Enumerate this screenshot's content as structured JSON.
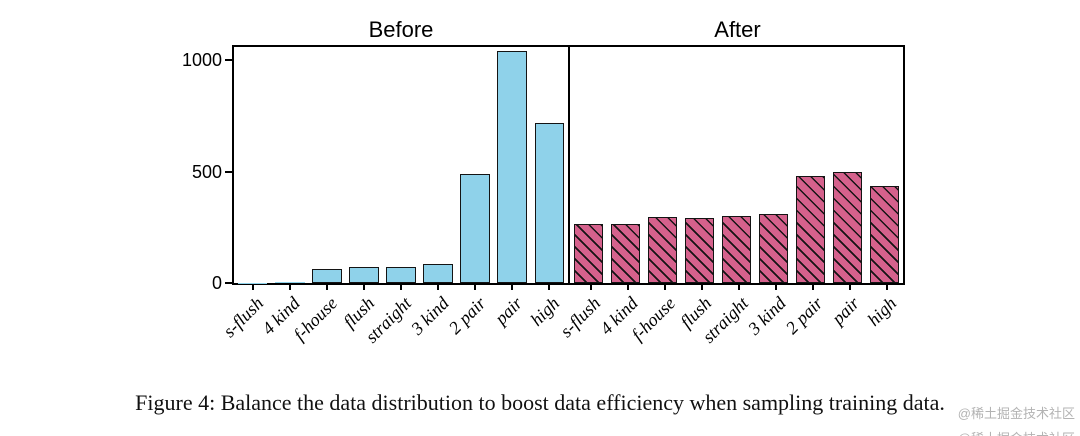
{
  "chart_data": {
    "type": "bar",
    "categories": [
      "s-flush",
      "4 kind",
      "f-house",
      "flush",
      "straight",
      "3 kind",
      "2 pair",
      "pair",
      "high"
    ],
    "panels": [
      {
        "title": "Before",
        "values": [
          2,
          3,
          65,
          70,
          70,
          85,
          490,
          1040,
          720
        ],
        "bar_color": "#8FD2EA",
        "hatch": false
      },
      {
        "title": "After",
        "values": [
          265,
          265,
          295,
          290,
          300,
          310,
          480,
          500,
          435
        ],
        "bar_color": "#D5618C",
        "hatch": true
      }
    ],
    "yticks": [
      0,
      500,
      1000
    ],
    "ylim": [
      0,
      1060
    ],
    "grid": false,
    "legend": "none"
  },
  "caption": "Figure 4: Balance the data distribution to boost data efficiency when sampling training data.",
  "watermark": "@稀土掘金技术社区",
  "colors": {
    "before_bar": "#8FD2EA",
    "after_bar": "#D5618C",
    "axis": "#000000",
    "caption_text": "#111111",
    "watermark_text": "#b3b3b3"
  }
}
